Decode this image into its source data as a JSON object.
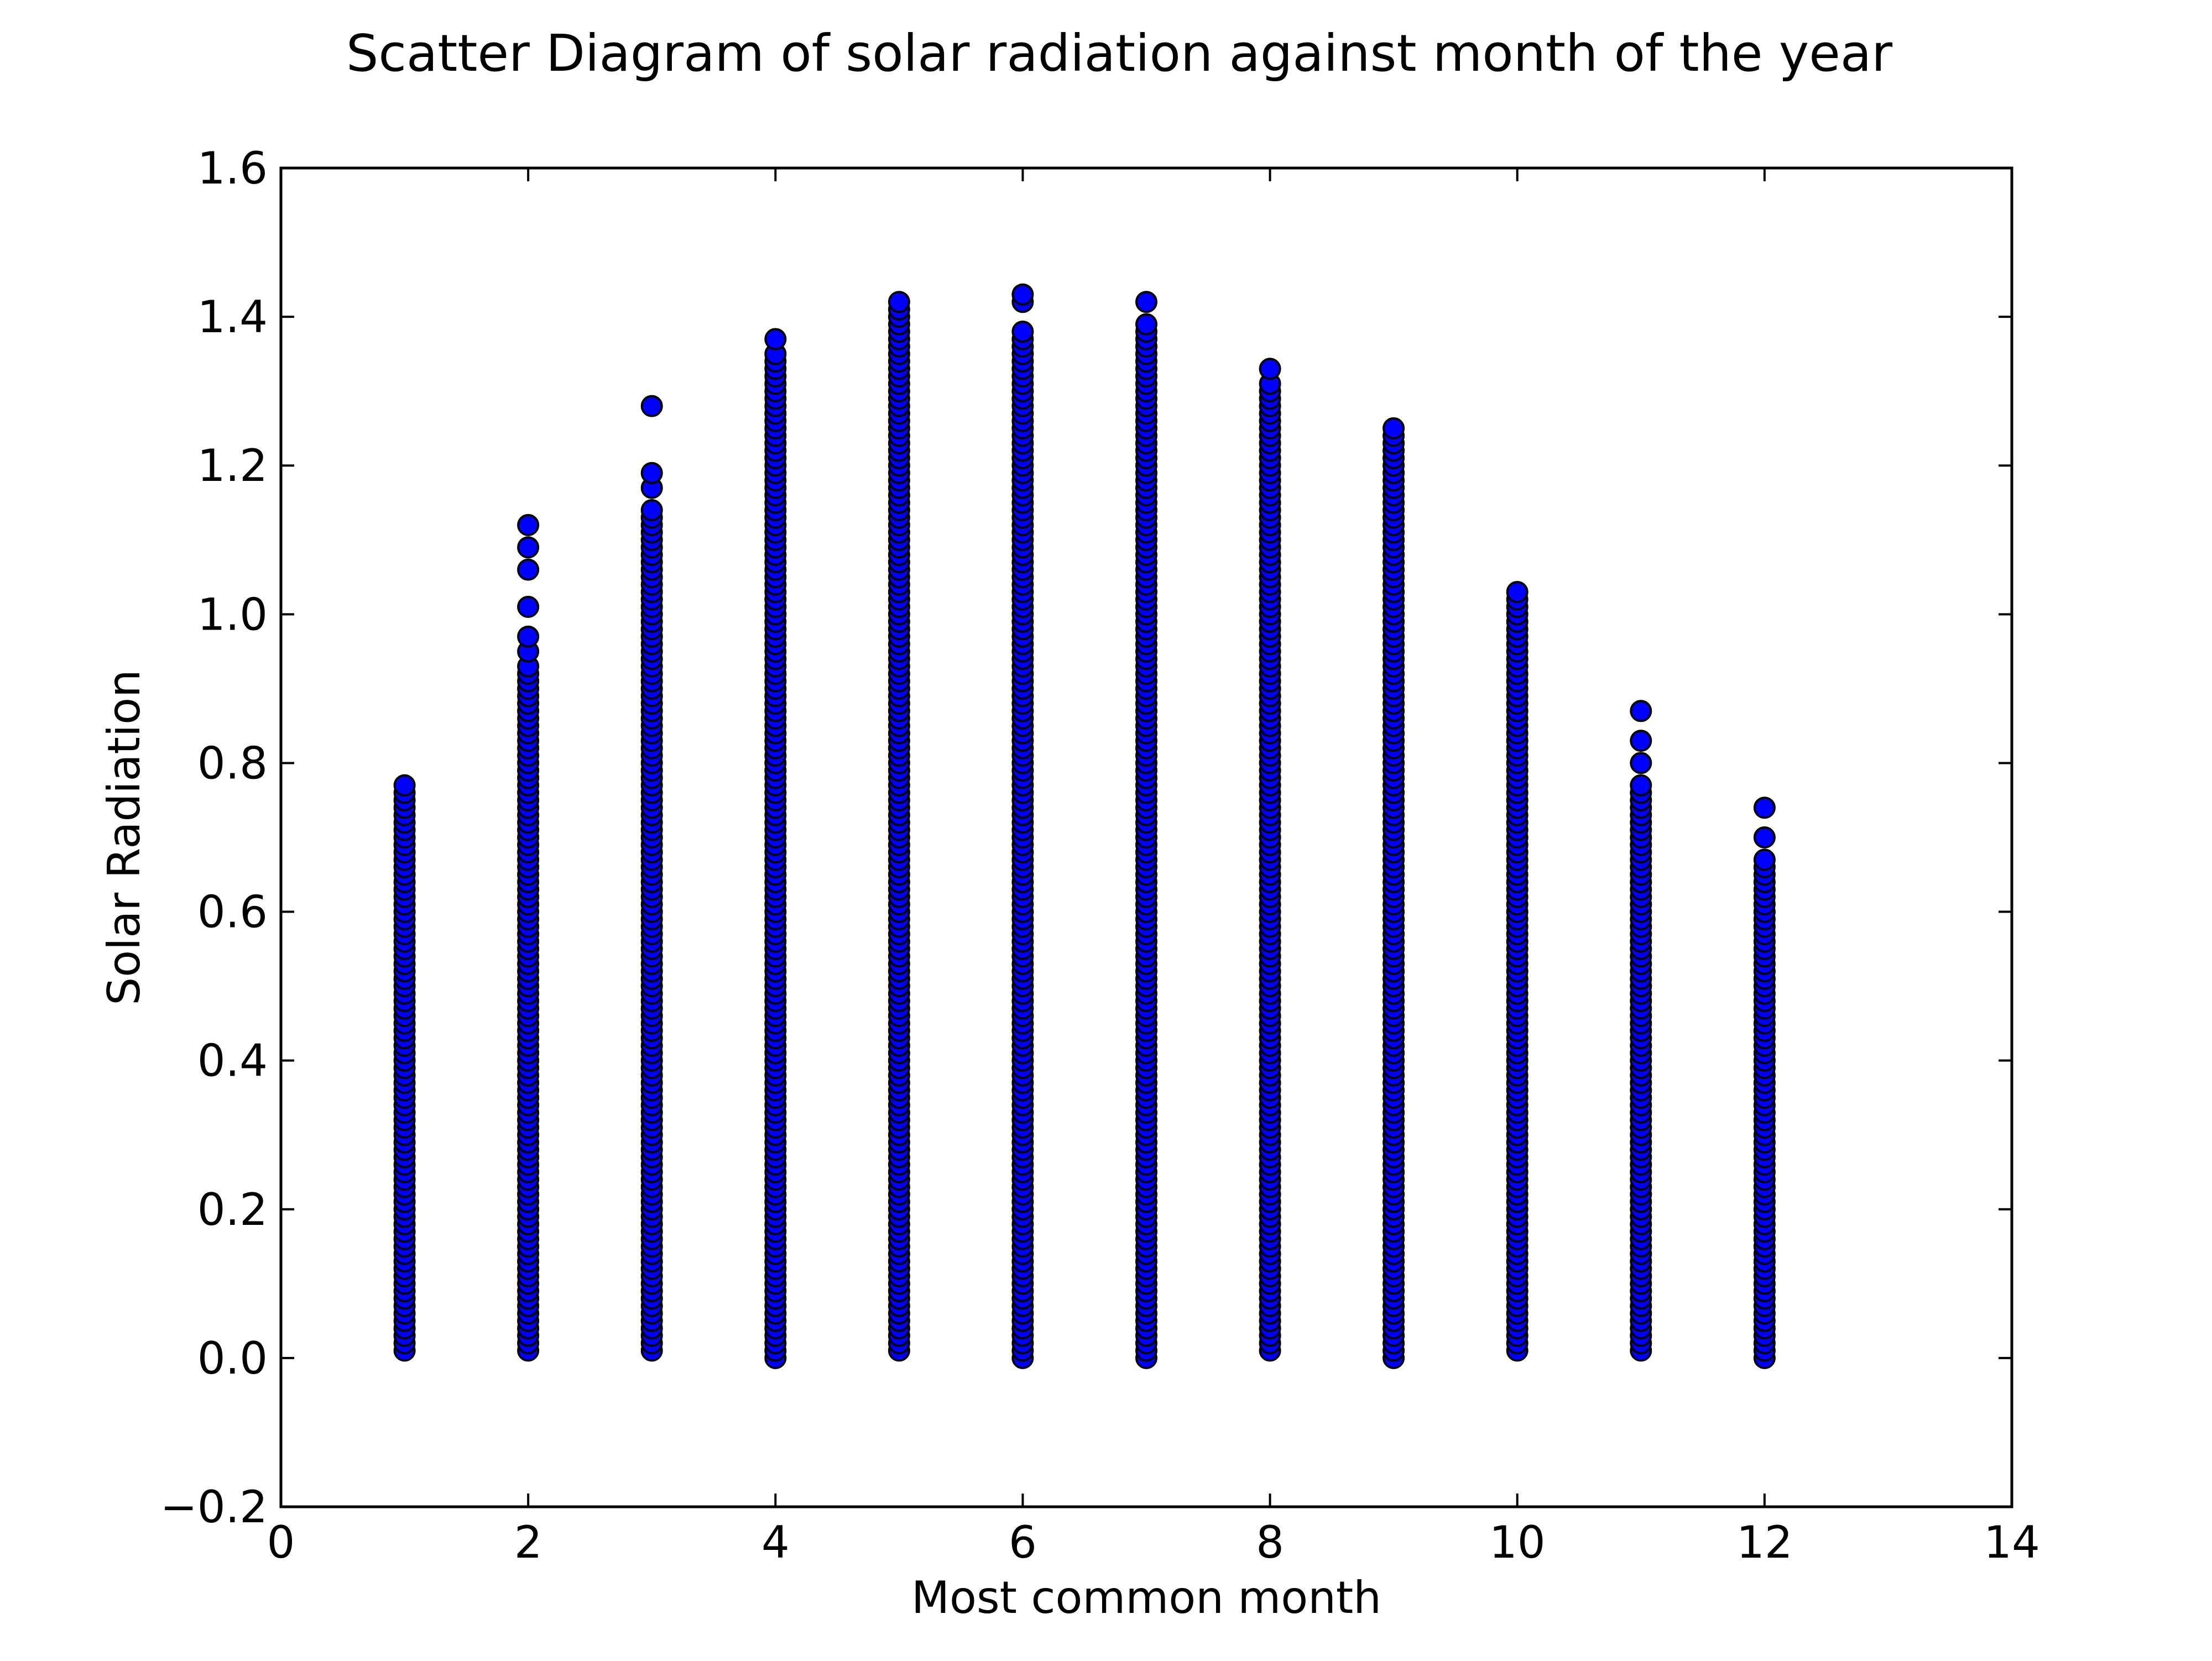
{
  "chart_data": {
    "type": "scatter",
    "title": "Scatter Diagram of solar radiation against month of the year",
    "xlabel": "Most common month",
    "ylabel": "Solar Radiation",
    "xlim": [
      0,
      14
    ],
    "ylim": [
      -0.2,
      1.6
    ],
    "xticks": [
      0,
      2,
      4,
      6,
      8,
      10,
      12,
      14
    ],
    "xtick_labels": [
      "0",
      "2",
      "4",
      "6",
      "8",
      "10",
      "12",
      "14"
    ],
    "yticks": [
      -0.2,
      0.0,
      0.2,
      0.4,
      0.6,
      0.8,
      1.0,
      1.2,
      1.4,
      1.6
    ],
    "ytick_labels": [
      "−0.2",
      "0.0",
      "0.2",
      "0.4",
      "0.6",
      "0.8",
      "1.0",
      "1.2",
      "1.4",
      "1.6"
    ],
    "grid": false,
    "legend": "none",
    "marker_face_color": "#0000ff",
    "marker_edge_color": "#000000",
    "series": [
      {
        "points": [
          {
            "x": 1,
            "y_min": 0.01,
            "y_max": 0.77,
            "isolated": []
          },
          {
            "x": 2,
            "y_min": 0.01,
            "y_max": 0.93,
            "isolated": [
              0.95,
              0.97,
              1.01,
              1.06,
              1.09,
              1.12
            ]
          },
          {
            "x": 3,
            "y_min": 0.01,
            "y_max": 1.14,
            "isolated": [
              1.17,
              1.19,
              1.28
            ]
          },
          {
            "x": 4,
            "y_min": 0.0,
            "y_max": 1.35,
            "isolated": [
              1.37
            ]
          },
          {
            "x": 5,
            "y_min": 0.01,
            "y_max": 1.42,
            "isolated": []
          },
          {
            "x": 6,
            "y_min": 0.0,
            "y_max": 1.38,
            "isolated": [
              1.42,
              1.43
            ]
          },
          {
            "x": 7,
            "y_min": 0.0,
            "y_max": 1.39,
            "isolated": [
              1.42
            ]
          },
          {
            "x": 8,
            "y_min": 0.01,
            "y_max": 1.31,
            "isolated": [
              1.33
            ]
          },
          {
            "x": 9,
            "y_min": 0.0,
            "y_max": 1.25,
            "isolated": []
          },
          {
            "x": 10,
            "y_min": 0.01,
            "y_max": 1.03,
            "isolated": []
          },
          {
            "x": 11,
            "y_min": 0.01,
            "y_max": 0.77,
            "isolated": [
              0.8,
              0.83,
              0.87
            ]
          },
          {
            "x": 12,
            "y_min": 0.0,
            "y_max": 0.67,
            "isolated": [
              0.7,
              0.74
            ]
          }
        ]
      }
    ]
  }
}
